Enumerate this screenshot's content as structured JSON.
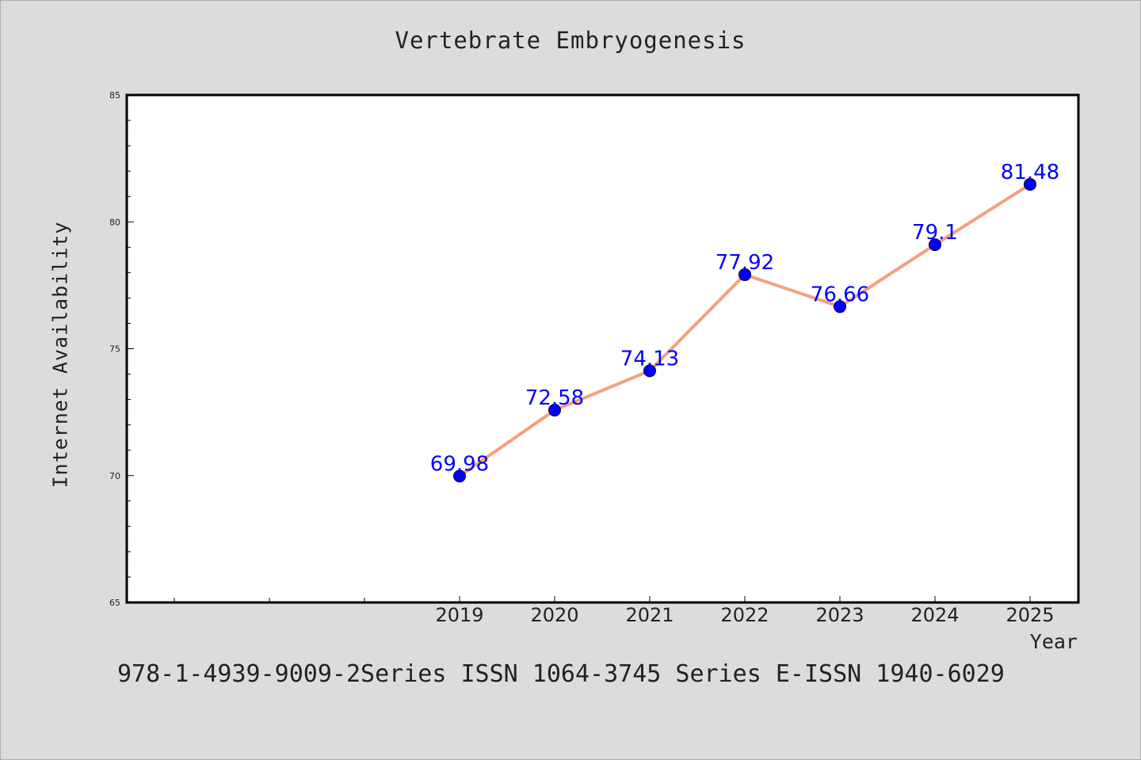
{
  "chart_data": {
    "type": "line",
    "title": "Vertebrate Embryogenesis",
    "xlabel": "Year",
    "ylabel": "Internet Availability",
    "categories": [
      "2019",
      "2020",
      "2021",
      "2022",
      "2023",
      "2024",
      "2025"
    ],
    "values": [
      69.98,
      72.58,
      74.13,
      77.92,
      76.66,
      79.1,
      81.48
    ],
    "data_labels": [
      "69.98",
      "72.58",
      "74.13",
      "77.92",
      "76.66",
      "79.1",
      "81.48"
    ],
    "ylim": [
      65,
      85
    ],
    "yticks": [
      65,
      70,
      75,
      80,
      85
    ],
    "ytick_labels": [
      "65",
      "70",
      "75",
      "80",
      "85"
    ],
    "x_slots_before_first_category": 3,
    "line_color": "#f4a07e",
    "marker_color": "#0000ff",
    "label_color": "#0000ff",
    "grid": false,
    "legend": "none"
  },
  "footer": {
    "text": "978-1-4939-9009-2Series ISSN 1064-3745 Series E-ISSN 1940-6029"
  }
}
